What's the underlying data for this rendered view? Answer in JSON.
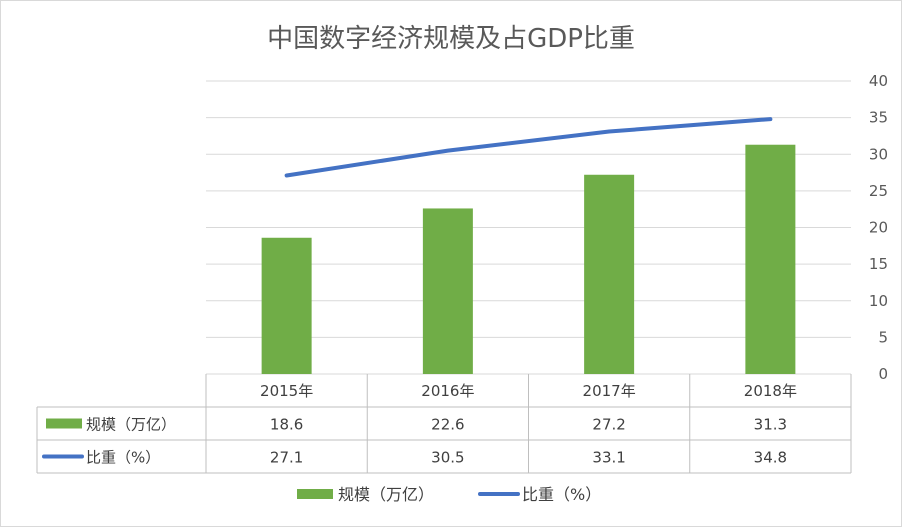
{
  "chart_data": {
    "type": "bar",
    "title": "中国数字经济规模及占GDP比重",
    "categories": [
      "2015年",
      "2016年",
      "2017年",
      "2018年"
    ],
    "series": [
      {
        "name": "规模（万亿）",
        "type": "bar",
        "values": [
          18.6,
          22.6,
          27.2,
          31.3
        ],
        "color": "#70ad47"
      },
      {
        "name": "比重（%）",
        "type": "line",
        "values": [
          27.1,
          30.5,
          33.1,
          34.8
        ],
        "color": "#4472c4"
      }
    ],
    "value_labels": {
      "规模（万亿）": [
        "18.6",
        "22.6",
        "27.2",
        "31.3"
      ],
      "比重（%）": [
        "27.1",
        "30.5",
        "33.1",
        "34.8"
      ]
    },
    "ylim": [
      0,
      40
    ],
    "yticks": [
      0,
      5,
      10,
      15,
      20,
      25,
      30,
      35,
      40
    ],
    "y_axis_side": "right",
    "grid": true,
    "data_table": true,
    "legend_position": "bottom"
  }
}
